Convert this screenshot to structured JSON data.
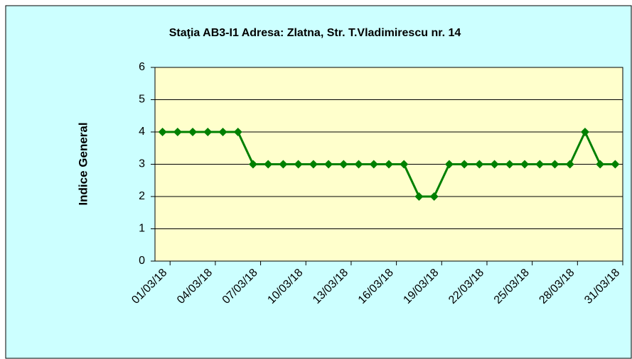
{
  "chart_data": {
    "type": "line",
    "title": "Staţia AB3-I1 Adresa: Zlatna, Str. T.Vladimirescu nr. 14",
    "y_label": "Indice General",
    "categories": [
      "01/03/18",
      null,
      null,
      "04/03/18",
      null,
      null,
      "07/03/18",
      null,
      null,
      "10/03/18",
      null,
      null,
      "13/03/18",
      null,
      null,
      "16/03/18",
      null,
      null,
      "19/03/18",
      null,
      null,
      "22/03/18",
      null,
      null,
      "25/03/18",
      null,
      null,
      "28/03/18",
      null,
      null,
      "31/03/18"
    ],
    "series": [
      {
        "name": "Indice General",
        "color": "#008000",
        "values": [
          4,
          4,
          4,
          4,
          4,
          4,
          3,
          3,
          3,
          3,
          3,
          3,
          3,
          3,
          3,
          3,
          3,
          2,
          2,
          3,
          3,
          3,
          3,
          3,
          3,
          3,
          3,
          3,
          4,
          3,
          3
        ]
      }
    ],
    "ylim": [
      0,
      6
    ],
    "yticks": [
      0,
      1,
      2,
      3,
      4,
      5,
      6
    ],
    "grid": true
  }
}
